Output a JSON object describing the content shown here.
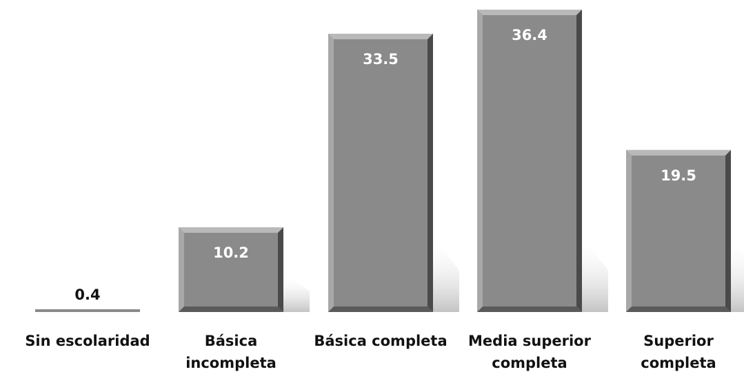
{
  "chart_data": {
    "type": "bar",
    "categories": [
      "Sin escolaridad",
      "Básica incompleta",
      "Básica completa",
      "Media superior completa",
      "Superior completa"
    ],
    "category_lines": [
      [
        "Sin escolaridad"
      ],
      [
        "Básica",
        "incompleta"
      ],
      [
        "Básica completa"
      ],
      [
        "Media superior",
        "completa"
      ],
      [
        "Superior",
        "completa"
      ]
    ],
    "values": [
      0.4,
      10.2,
      33.5,
      36.4,
      19.5
    ],
    "value_labels": [
      "0.4",
      "10.2",
      "33.5",
      "36.4",
      "19.5"
    ],
    "title": "",
    "xlabel": "",
    "ylabel": "",
    "ylim": [
      0,
      36.4
    ],
    "grid": false,
    "legend": "none",
    "colors": {
      "bar": "#8a8a8a",
      "bar_light": "#b9b9b9",
      "bar_dark": "#4a4a4a",
      "inside_label": "#ffffff",
      "outside_label": "#111111",
      "shadow": "#bfbfbf"
    }
  }
}
